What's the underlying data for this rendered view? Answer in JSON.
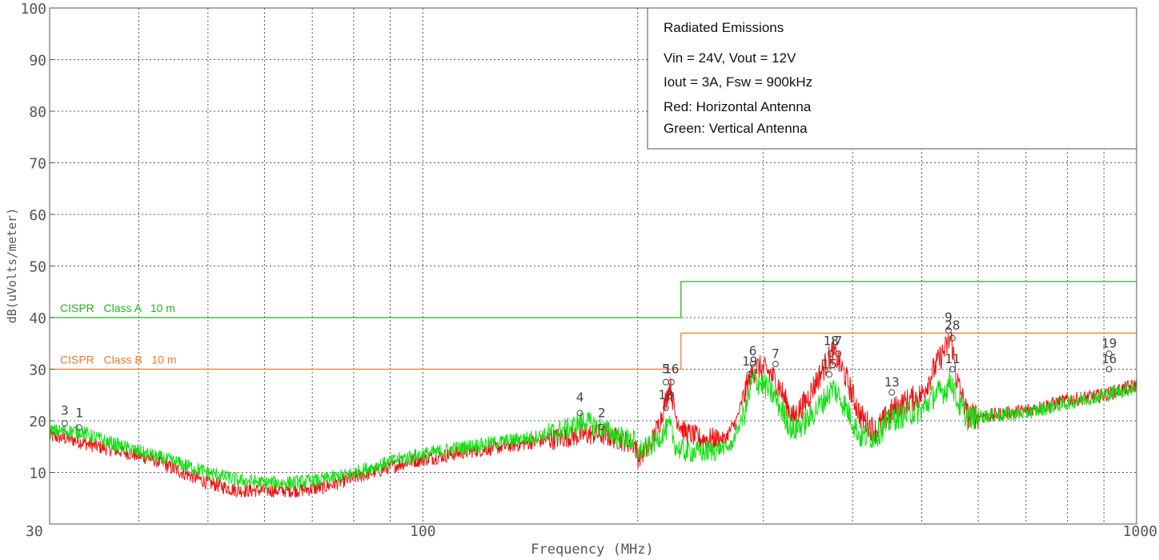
{
  "chart_data": {
    "type": "line",
    "x_scale": "log",
    "xlim": [
      30,
      1000
    ],
    "ylim": [
      0,
      100
    ],
    "xlabel": "Frequency (MHz)",
    "ylabel": "dB(uVolts/meter)",
    "x_ticks": [
      "30",
      "100",
      "1000"
    ],
    "y_ticks": [
      "10",
      "20",
      "30",
      "40",
      "50",
      "60",
      "70",
      "80",
      "90",
      "100"
    ],
    "grid": true,
    "legend": {
      "placement": "top-right",
      "lines": [
        "Radiated Emissions",
        "Vin = 24V, Vout = 12V",
        "Iout = 3A, Fsw = 900kHz",
        "Red: Horizontal Antenna",
        "Green: Vertical Antenna"
      ]
    },
    "limits": [
      {
        "name": "CISPR   Class A   10 m",
        "color": "#22b422",
        "steps": [
          [
            30,
            40
          ],
          [
            230,
            40
          ],
          [
            230,
            47
          ],
          [
            1000,
            47
          ]
        ]
      },
      {
        "name": "CISPR   Class B   10 m",
        "color": "#f07830",
        "steps": [
          [
            30,
            30
          ],
          [
            230,
            30
          ],
          [
            230,
            37
          ],
          [
            1000,
            37
          ]
        ]
      }
    ],
    "series": [
      {
        "color": "#ee1111",
        "points": [
          [
            30,
            17
          ],
          [
            32,
            16.5
          ],
          [
            35,
            15
          ],
          [
            38,
            14
          ],
          [
            42,
            12.5
          ],
          [
            46,
            10
          ],
          [
            50,
            8
          ],
          [
            55,
            6.5
          ],
          [
            60,
            6.5
          ],
          [
            66,
            6.5
          ],
          [
            72,
            7
          ],
          [
            78,
            8.5
          ],
          [
            85,
            10
          ],
          [
            95,
            12
          ],
          [
            105,
            13
          ],
          [
            115,
            14
          ],
          [
            130,
            15
          ],
          [
            145,
            16
          ],
          [
            160,
            17
          ],
          [
            175,
            17.5
          ],
          [
            188,
            16.5
          ],
          [
            198,
            15.5
          ],
          [
            200,
            13
          ],
          [
            208,
            15
          ],
          [
            215,
            20
          ],
          [
            219,
            24
          ],
          [
            222,
            27
          ],
          [
            226,
            21
          ],
          [
            232,
            18
          ],
          [
            245,
            16.5
          ],
          [
            265,
            16.5
          ],
          [
            275,
            20
          ],
          [
            285,
            27
          ],
          [
            293,
            30.5
          ],
          [
            305,
            29.5
          ],
          [
            315,
            27
          ],
          [
            330,
            20.5
          ],
          [
            345,
            24
          ],
          [
            360,
            29
          ],
          [
            376,
            33.5
          ],
          [
            390,
            29
          ],
          [
            410,
            21
          ],
          [
            430,
            18
          ],
          [
            455,
            22
          ],
          [
            480,
            24
          ],
          [
            500,
            25
          ],
          [
            520,
            30
          ],
          [
            540,
            34
          ],
          [
            550,
            36
          ],
          [
            560,
            28
          ],
          [
            580,
            21
          ],
          [
            620,
            21
          ],
          [
            700,
            22
          ],
          [
            800,
            24
          ],
          [
            900,
            25
          ],
          [
            1000,
            27
          ]
        ]
      },
      {
        "color": "#14e014",
        "points": [
          [
            30,
            18
          ],
          [
            33,
            18
          ],
          [
            36,
            16
          ],
          [
            40,
            14
          ],
          [
            45,
            12
          ],
          [
            50,
            10
          ],
          [
            55,
            8.5
          ],
          [
            60,
            8
          ],
          [
            66,
            8
          ],
          [
            72,
            8.5
          ],
          [
            78,
            9.5
          ],
          [
            85,
            11
          ],
          [
            95,
            13
          ],
          [
            105,
            14
          ],
          [
            115,
            15
          ],
          [
            130,
            16
          ],
          [
            145,
            17
          ],
          [
            160,
            18.5
          ],
          [
            168,
            20
          ],
          [
            175,
            19
          ],
          [
            188,
            17
          ],
          [
            198,
            16
          ],
          [
            200,
            14
          ],
          [
            208,
            15
          ],
          [
            215,
            17
          ],
          [
            222,
            19
          ],
          [
            226,
            15
          ],
          [
            232,
            14
          ],
          [
            250,
            14
          ],
          [
            270,
            15
          ],
          [
            283,
            22
          ],
          [
            290,
            28
          ],
          [
            300,
            27
          ],
          [
            310,
            25
          ],
          [
            330,
            18
          ],
          [
            345,
            20
          ],
          [
            360,
            23
          ],
          [
            376,
            26.5
          ],
          [
            390,
            23
          ],
          [
            410,
            17
          ],
          [
            430,
            17
          ],
          [
            455,
            20.5
          ],
          [
            480,
            21.5
          ],
          [
            500,
            22
          ],
          [
            520,
            25
          ],
          [
            540,
            26
          ],
          [
            550,
            28
          ],
          [
            560,
            24
          ],
          [
            580,
            20.5
          ],
          [
            620,
            21
          ],
          [
            700,
            21.5
          ],
          [
            800,
            23.5
          ],
          [
            900,
            25
          ],
          [
            1000,
            26.5
          ]
        ]
      }
    ],
    "markers": [
      {
        "label": "3",
        "x": 31.5,
        "y": 19.5,
        "ly": 21.5
      },
      {
        "label": "1",
        "x": 33,
        "y": 18.7,
        "ly": 21
      },
      {
        "label": "4",
        "x": 166,
        "y": 21.5,
        "ly": 24
      },
      {
        "label": "2",
        "x": 178,
        "y": 18.8,
        "ly": 21
      },
      {
        "label": "10",
        "x": 219,
        "y": 22.5,
        "ly": 24.5
      },
      {
        "label": "5",
        "x": 219,
        "y": 27.5,
        "ly": 29.5
      },
      {
        "label": "16",
        "x": 223,
        "y": 27.5,
        "ly": 29.5
      },
      {
        "label": "6",
        "x": 290,
        "y": 31,
        "ly": 33
      },
      {
        "label": "19",
        "x": 287,
        "y": 29,
        "ly": 31
      },
      {
        "label": "7",
        "x": 312,
        "y": 31,
        "ly": 32.5
      },
      {
        "label": "18",
        "x": 373,
        "y": 33,
        "ly": 35
      },
      {
        "label": "7",
        "x": 382,
        "y": 33,
        "ly": 35
      },
      {
        "label": "15",
        "x": 371,
        "y": 29,
        "ly": 30.5
      },
      {
        "label": "13",
        "x": 454,
        "y": 25.5,
        "ly": 27
      },
      {
        "label": "9",
        "x": 545,
        "y": 37.5,
        "ly": 39.5
      },
      {
        "label": "28",
        "x": 552,
        "y": 36,
        "ly": 38
      },
      {
        "label": "11",
        "x": 552,
        "y": 30,
        "ly": 31.5
      },
      {
        "label": "19",
        "x": 915,
        "y": 33,
        "ly": 34.5
      },
      {
        "label": "16",
        "x": 915,
        "y": 30,
        "ly": 31.5
      }
    ]
  }
}
